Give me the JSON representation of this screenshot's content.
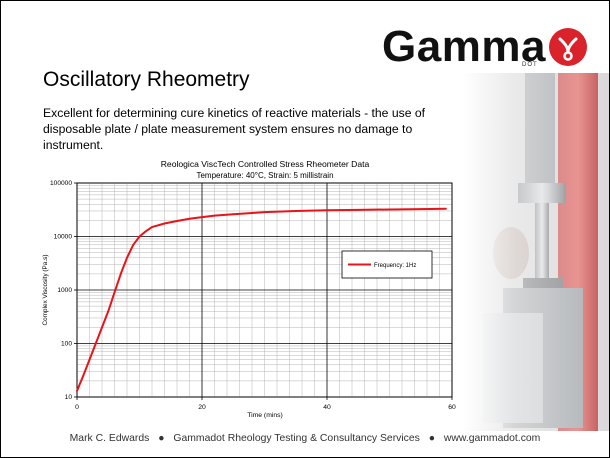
{
  "slide": {
    "logo_text": "Gamma",
    "logo_sub": "DOT",
    "title": "Oscillatory Rheometry",
    "description": "Excellent for determining cure kinetics of reactive materials - the use of disposable plate / plate measurement system ensures no damage to instrument.",
    "footer": {
      "author": "Mark C. Edwards",
      "company": "Gammadot Rheology Testing & Consultancy Services",
      "website": "www.gammadot.com",
      "separator": "●"
    }
  },
  "chart_data": {
    "type": "line",
    "title": "Reologica ViscTech Controlled Stress Rheometer Data",
    "subtitle": "Temperature: 40°C, Strain: 5 millistrain",
    "xlabel": "Time (mins)",
    "ylabel": "Complex Viscosity (Pa.s)",
    "xlim": [
      0,
      60
    ],
    "ylim": [
      10,
      100000
    ],
    "yscale": "log",
    "grid": true,
    "legend_position": "right",
    "x_ticks": [
      "0",
      "20",
      "40",
      "60"
    ],
    "y_ticks": [
      "10",
      "100",
      "1000",
      "10000",
      "100000"
    ],
    "series": [
      {
        "name": "Frequency: 1Hz",
        "color": "#e8141a",
        "x": [
          0,
          1,
          2,
          3,
          4,
          5,
          6,
          7,
          8,
          9,
          10,
          11,
          12,
          14,
          16,
          18,
          20,
          22,
          25,
          28,
          30,
          35,
          40,
          45,
          50,
          55,
          59
        ],
        "y": [
          13,
          25,
          50,
          100,
          200,
          400,
          900,
          2000,
          4000,
          7000,
          10000,
          12500,
          15000,
          17500,
          19500,
          21500,
          23000,
          24500,
          26000,
          27500,
          28500,
          30000,
          31000,
          31500,
          32000,
          32500,
          33000
        ]
      }
    ]
  }
}
